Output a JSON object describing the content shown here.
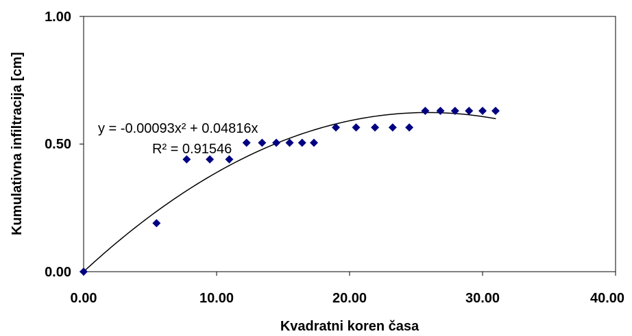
{
  "chart_data": {
    "type": "scatter",
    "title": "",
    "xlabel": "Kvadratni koren časa",
    "ylabel": "Kumulativna infiltracija [cm]",
    "xlim": [
      0,
      40
    ],
    "ylim": [
      0,
      1
    ],
    "x_ticks": [
      "0.00",
      "10.00",
      "20.00",
      "30.00",
      "40.00"
    ],
    "y_ticks": [
      "0.00",
      "0.50",
      "1.00"
    ],
    "grid": false,
    "marker_color": "#000080",
    "trend_color": "#000000",
    "series": [
      {
        "marker": "diamond",
        "points": [
          {
            "x": 0.0,
            "y": 0.0
          },
          {
            "x": 5.48,
            "y": 0.19
          },
          {
            "x": 7.75,
            "y": 0.44
          },
          {
            "x": 9.49,
            "y": 0.44
          },
          {
            "x": 10.95,
            "y": 0.44
          },
          {
            "x": 12.25,
            "y": 0.505
          },
          {
            "x": 13.42,
            "y": 0.505
          },
          {
            "x": 14.49,
            "y": 0.505
          },
          {
            "x": 15.49,
            "y": 0.505
          },
          {
            "x": 16.43,
            "y": 0.505
          },
          {
            "x": 17.32,
            "y": 0.505
          },
          {
            "x": 18.97,
            "y": 0.565
          },
          {
            "x": 20.49,
            "y": 0.565
          },
          {
            "x": 21.91,
            "y": 0.565
          },
          {
            "x": 23.24,
            "y": 0.565
          },
          {
            "x": 24.49,
            "y": 0.565
          },
          {
            "x": 25.69,
            "y": 0.63
          },
          {
            "x": 26.83,
            "y": 0.63
          },
          {
            "x": 27.93,
            "y": 0.63
          },
          {
            "x": 28.98,
            "y": 0.63
          },
          {
            "x": 30.0,
            "y": 0.63
          },
          {
            "x": 30.98,
            "y": 0.63
          }
        ]
      }
    ],
    "trendline": {
      "type": "polynomial",
      "coefficients": {
        "a2": -0.00093,
        "a1": 0.04816,
        "a0": 0
      },
      "x_range": [
        0,
        31
      ],
      "equation_label": "y = -0.00093x² + 0.04816x",
      "r2_label": "R² = 0.91546"
    }
  }
}
